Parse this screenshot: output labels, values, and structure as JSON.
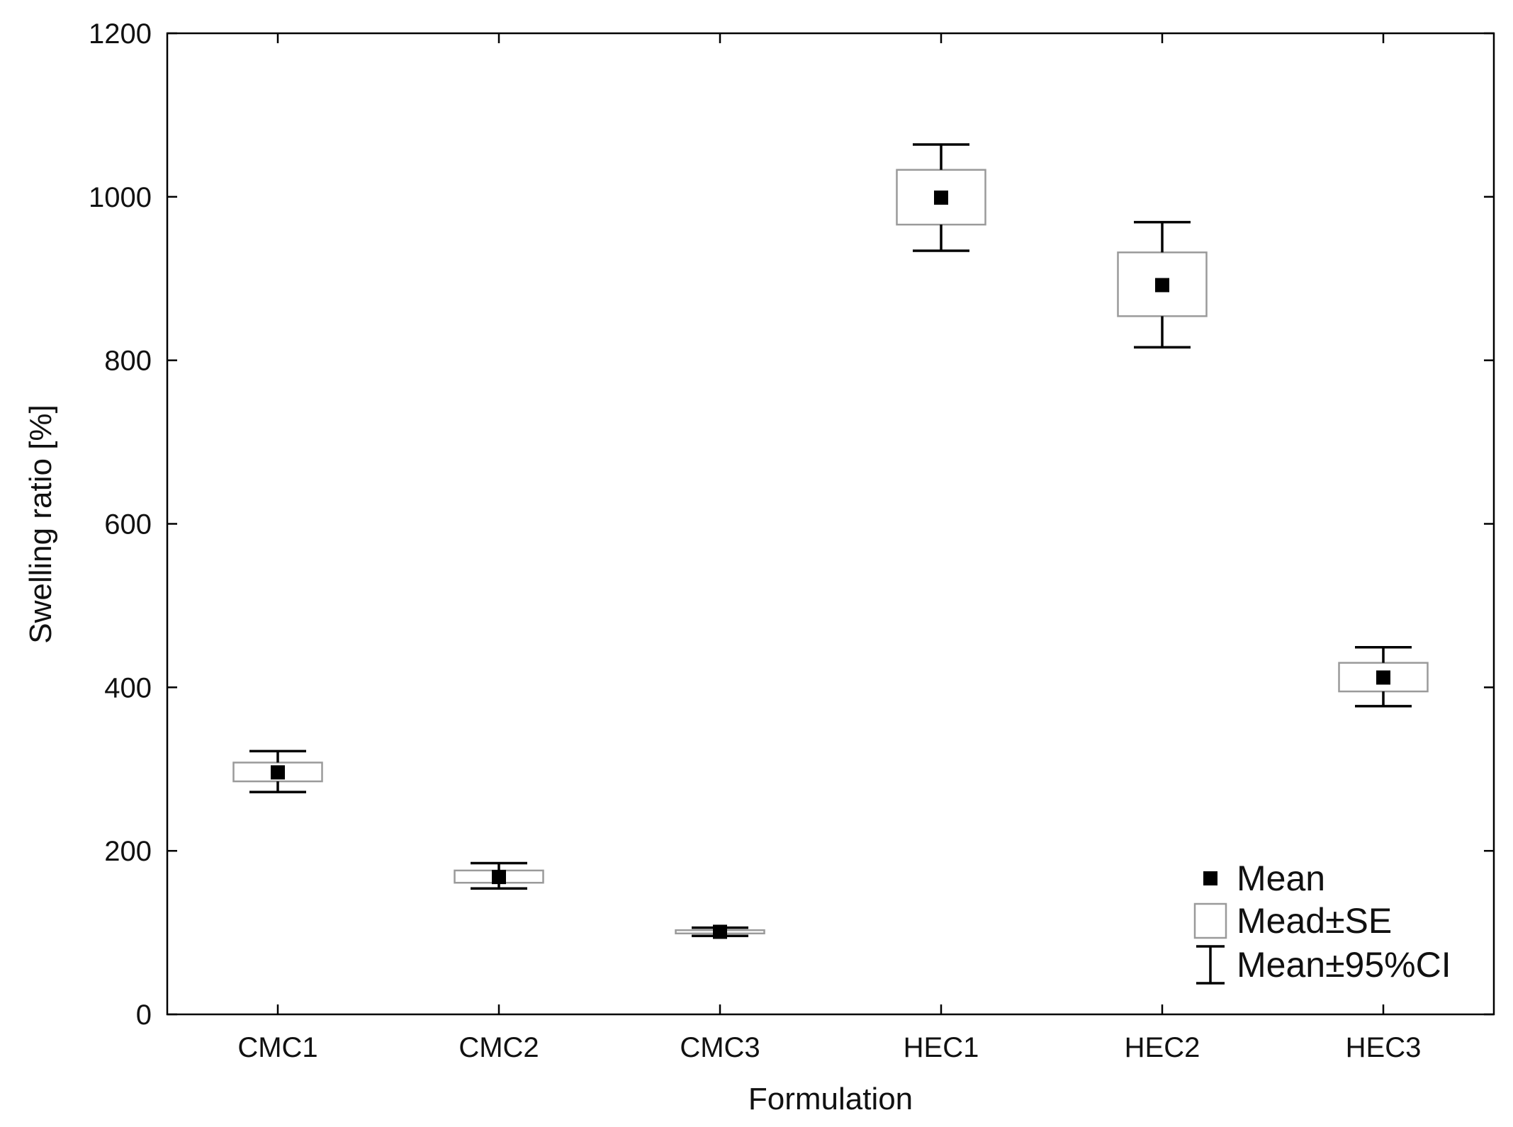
{
  "chart_data": {
    "type": "box",
    "xlabel": "Formulation",
    "ylabel": "Swelling ratio [%]",
    "ylim": [
      0,
      1200
    ],
    "yticks": [
      0,
      200,
      400,
      600,
      800,
      1000,
      1200
    ],
    "categories": [
      "CMC1",
      "CMC2",
      "CMC3",
      "HEC1",
      "HEC2",
      "HEC3"
    ],
    "series": [
      {
        "name": "Mean",
        "values": [
          296,
          168,
          101,
          999,
          892,
          412
        ]
      },
      {
        "name": "Mead±SE",
        "lower": [
          285,
          161,
          99,
          966,
          854,
          395
        ],
        "upper": [
          308,
          176,
          103,
          1033,
          932,
          430
        ]
      },
      {
        "name": "Mean±95%CI",
        "lower": [
          272,
          154,
          96,
          934,
          816,
          377
        ],
        "upper": [
          322,
          185,
          106,
          1064,
          969,
          449
        ]
      }
    ],
    "legend": {
      "position": "bottom-right",
      "entries": [
        "Mean",
        "Mead±SE",
        "Mean±95%CI"
      ]
    },
    "grid": false
  },
  "colors": {
    "mean_marker": "#000000",
    "se_box_stroke": "#9a9a9a",
    "ci_line": "#000000"
  }
}
